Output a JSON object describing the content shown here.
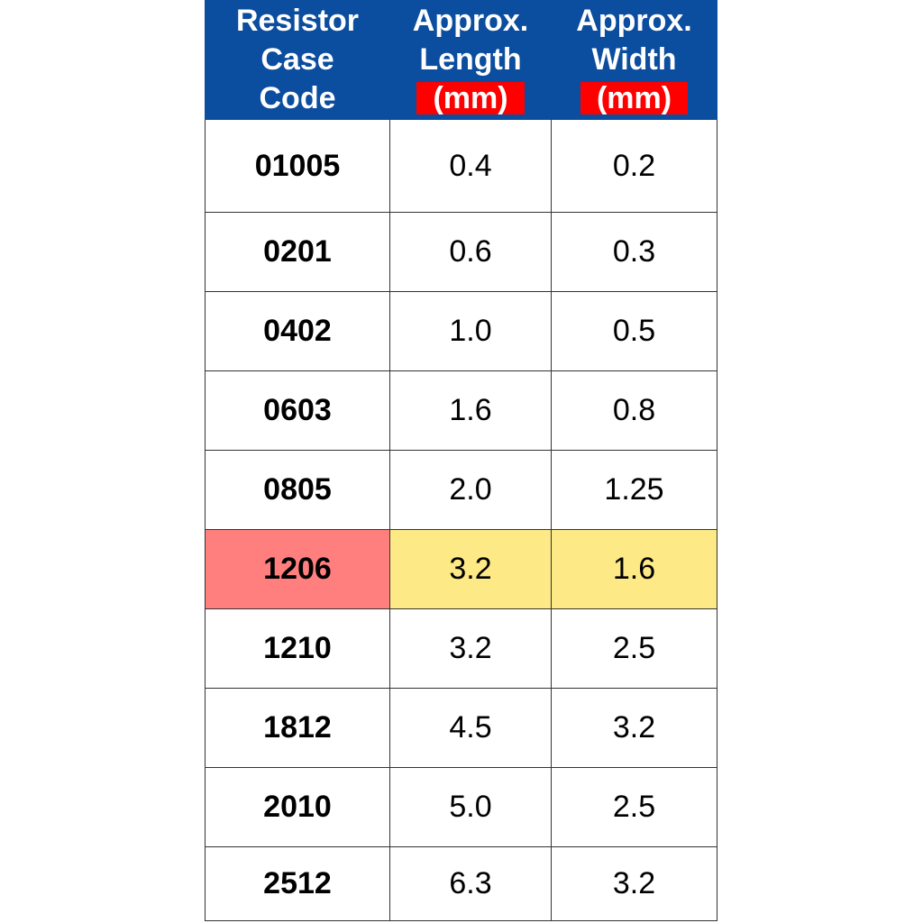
{
  "table": {
    "header": [
      {
        "lines": [
          "Resistor",
          "Case",
          "Code"
        ]
      },
      {
        "lines": [
          "Approx.",
          "Length"
        ],
        "unit": "(mm)"
      },
      {
        "lines": [
          "Approx.",
          "Width"
        ],
        "unit": "(mm)"
      }
    ],
    "rows": [
      [
        "01005",
        "0.4",
        "0.2"
      ],
      [
        "0201",
        "0.6",
        "0.3"
      ],
      [
        "0402",
        "1.0",
        "0.5"
      ],
      [
        "0603",
        "1.6",
        "0.8"
      ],
      [
        "0805",
        "2.0",
        "1.25"
      ],
      [
        "1206",
        "3.2",
        "1.6"
      ],
      [
        "1210",
        "3.2",
        "2.5"
      ],
      [
        "1812",
        "4.5",
        "3.2"
      ],
      [
        "2010",
        "5.0",
        "2.5"
      ],
      [
        "2512",
        "6.3",
        "3.2"
      ]
    ]
  }
}
